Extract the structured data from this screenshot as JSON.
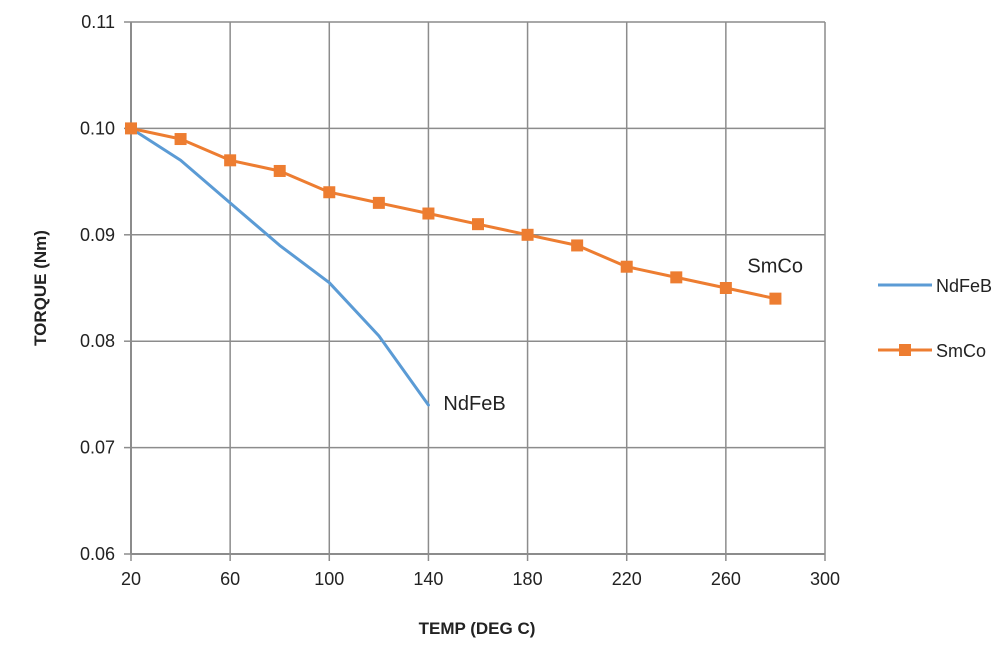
{
  "chart_data": {
    "type": "line",
    "title": "",
    "xlabel": "TEMP (DEG C)",
    "ylabel": "TORQUE (Nm)",
    "xlim": [
      20,
      300
    ],
    "ylim": [
      0.06,
      0.11
    ],
    "x_ticks": [
      20,
      60,
      100,
      140,
      180,
      220,
      260,
      300
    ],
    "x_tick_labels": [
      "20",
      "60",
      "100",
      "140",
      "180",
      "220",
      "260",
      "300"
    ],
    "y_ticks": [
      0.06,
      0.07,
      0.08,
      0.09,
      0.1,
      0.11
    ],
    "y_tick_labels": [
      "0.06",
      "0.07",
      "0.08",
      "0.09",
      "0.10",
      "0.11"
    ],
    "grid": true,
    "legend_position": "right",
    "series": [
      {
        "name": "NdFeB",
        "color": "#5B9BD5",
        "marker": "none",
        "x": [
          20,
          40,
          60,
          80,
          100,
          120,
          140
        ],
        "y": [
          0.1,
          0.097,
          0.093,
          0.089,
          0.0855,
          0.0805,
          0.074
        ]
      },
      {
        "name": "SmCo",
        "color": "#ED7D31",
        "marker": "square",
        "x": [
          20,
          40,
          60,
          80,
          100,
          120,
          140,
          160,
          180,
          200,
          220,
          240,
          260,
          280
        ],
        "y": [
          0.1,
          0.099,
          0.097,
          0.096,
          0.094,
          0.093,
          0.092,
          0.091,
          0.09,
          0.089,
          0.087,
          0.086,
          0.085,
          0.084
        ]
      }
    ],
    "annotations": [
      {
        "text": "NdFeB",
        "x": 140,
        "y": 0.074
      },
      {
        "text": "SmCo",
        "x": 280,
        "y": 0.084
      }
    ]
  }
}
